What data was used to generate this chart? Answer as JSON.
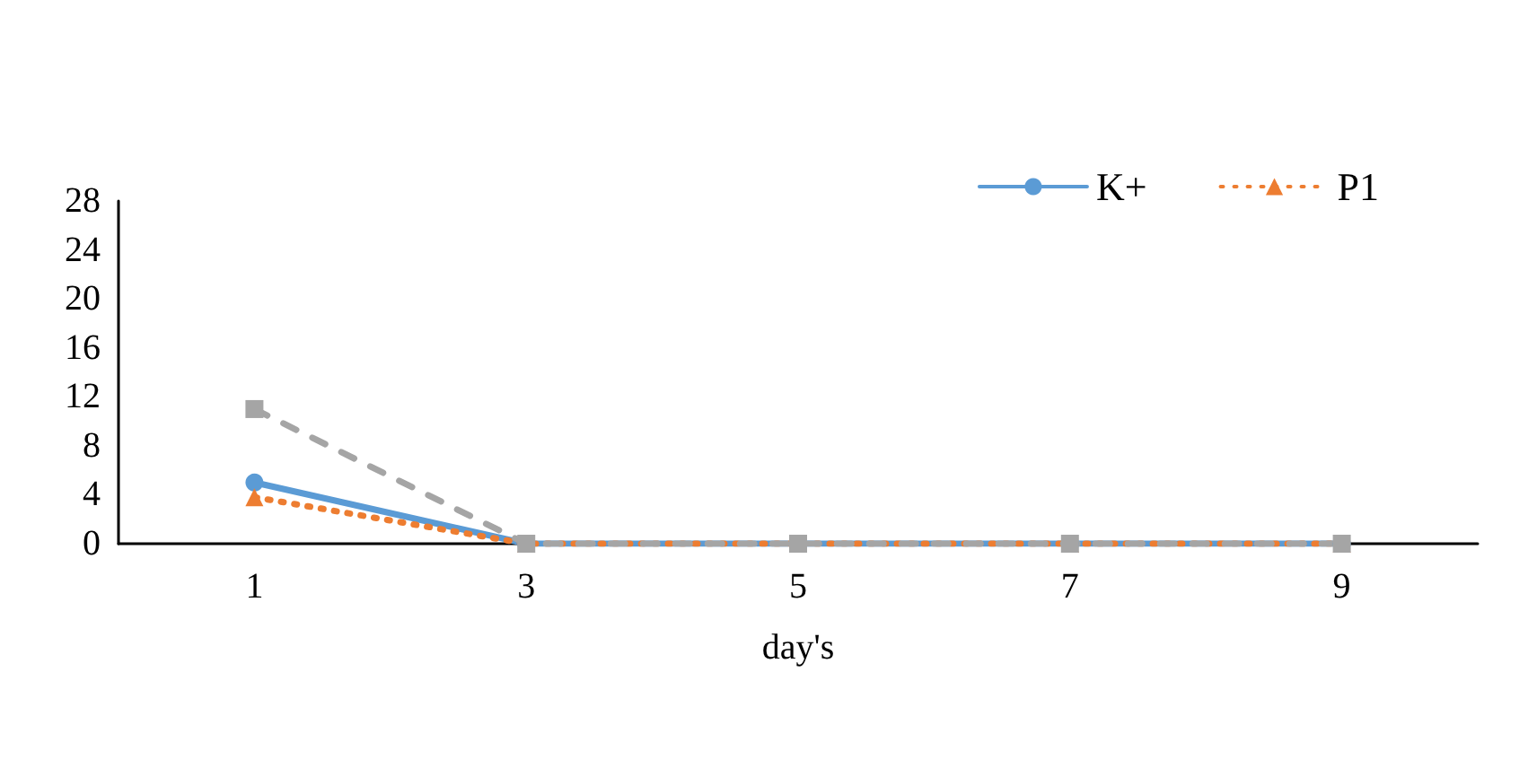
{
  "chart_data": {
    "type": "line",
    "xlabel": "day's",
    "categories": [
      "1",
      "3",
      "5",
      "7",
      "9"
    ],
    "series": [
      {
        "name": "K+",
        "color": "#5b9bd5",
        "values": [
          5,
          0,
          0,
          0,
          0
        ],
        "marker": "circle",
        "line_style": "solid"
      },
      {
        "name": "P1",
        "color": "#ed7d31",
        "values": [
          3.8,
          0,
          0,
          0,
          0
        ],
        "marker": "triangle",
        "line_style": "dotted"
      },
      {
        "color": "#a5a5a5",
        "values": [
          11,
          0,
          0,
          0,
          0
        ],
        "marker": "square",
        "line_style": "dashed"
      }
    ],
    "ylim": [
      0,
      28
    ],
    "yticks": [
      0,
      4,
      8,
      12,
      16,
      20,
      24,
      28
    ],
    "grid": false,
    "legend": "top right"
  }
}
